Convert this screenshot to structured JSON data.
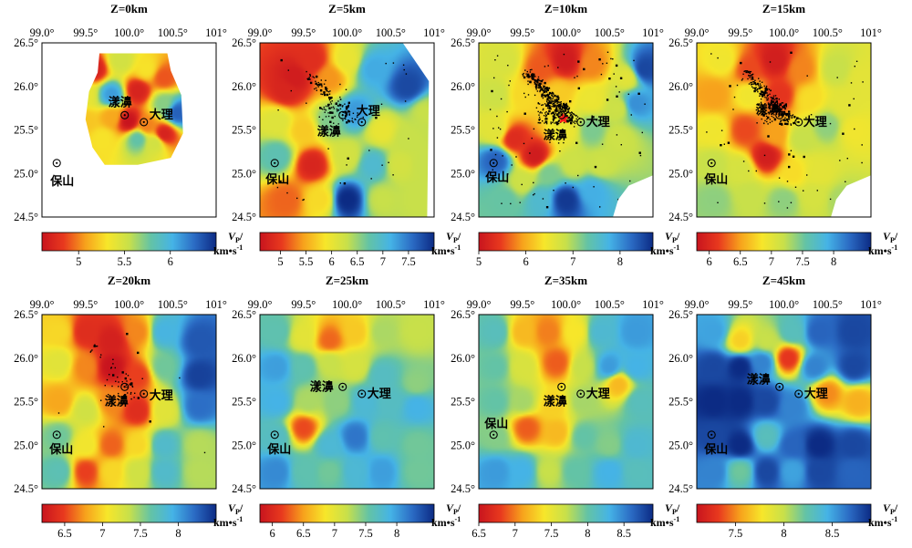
{
  "figure": {
    "x_ticks": [
      "99.0°",
      "99.5°",
      "100.0°",
      "100.5°",
      "101°"
    ],
    "y_ticks": [
      "26.5°",
      "26.0°",
      "25.5°",
      "25.0°",
      "24.5°"
    ],
    "unit_top": "V",
    "unit_sub": "P",
    "unit_slash": "/",
    "unit_bottom": "km•s",
    "unit_exp": "-1",
    "cities": {
      "baoshan": "保山",
      "yangbi": "漾濞",
      "dali": "大理"
    }
  },
  "colors": {
    "scale": [
      "#c8141e",
      "#e8391e",
      "#f7a21c",
      "#f7e62a",
      "#c8e04a",
      "#63c3a6",
      "#45b3e6",
      "#2b6bc4",
      "#0c2b84"
    ],
    "seismicity": "#000000",
    "epicenter": "#ff1a1a"
  },
  "chart_data": [
    {
      "type": "heatmap",
      "title": "Z=0km",
      "colorbar_ticks": [
        "5",
        "5.5",
        "6"
      ],
      "colorbar_range": [
        4.6,
        6.5
      ],
      "lon_range": [
        99.0,
        101.0
      ],
      "lat_range": [
        24.5,
        26.5
      ],
      "mask": "city-region",
      "seismicity": false,
      "nodes": [
        [
          99.6,
          26.2,
          4.7
        ],
        [
          99.9,
          26.3,
          5.5
        ],
        [
          100.2,
          26.2,
          5.3
        ],
        [
          100.4,
          26.1,
          4.9
        ],
        [
          99.5,
          25.9,
          5.4
        ],
        [
          99.8,
          25.9,
          6.1
        ],
        [
          100.1,
          25.95,
          4.7
        ],
        [
          100.4,
          25.8,
          5.7
        ],
        [
          100.55,
          25.7,
          6.3
        ],
        [
          99.5,
          25.6,
          5.2
        ],
        [
          99.8,
          25.65,
          5.1
        ],
        [
          100.0,
          25.6,
          4.6
        ],
        [
          100.2,
          25.55,
          5.0
        ],
        [
          100.4,
          25.45,
          4.7
        ],
        [
          99.7,
          25.4,
          5.3
        ],
        [
          100.1,
          25.4,
          5.8
        ],
        [
          100.3,
          25.35,
          5.5
        ]
      ]
    },
    {
      "type": "heatmap",
      "title": "Z=5km",
      "colorbar_ticks": [
        "5",
        "5.5",
        "6",
        "6.5",
        "7",
        "7.5"
      ],
      "colorbar_range": [
        4.6,
        8.0
      ],
      "lon_range": [
        99.0,
        101.0
      ],
      "lat_range": [
        24.5,
        26.5
      ],
      "mask": "corner-cut",
      "seismicity": true,
      "nodes": [
        [
          99.4,
          26.1,
          4.7
        ],
        [
          99.6,
          26.3,
          4.9
        ],
        [
          99.3,
          25.95,
          4.8
        ],
        [
          99.8,
          26.1,
          5.4
        ],
        [
          100.0,
          26.3,
          6.0
        ],
        [
          100.3,
          26.2,
          7.2
        ],
        [
          100.7,
          26.0,
          7.8
        ],
        [
          100.9,
          25.7,
          6.3
        ],
        [
          99.2,
          25.6,
          6.1
        ],
        [
          99.5,
          25.5,
          5.7
        ],
        [
          99.8,
          25.6,
          6.6
        ],
        [
          100.1,
          25.7,
          7.3
        ],
        [
          100.4,
          25.5,
          6.0
        ],
        [
          100.7,
          25.4,
          6.3
        ],
        [
          99.2,
          25.2,
          6.8
        ],
        [
          99.6,
          25.1,
          4.8
        ],
        [
          100.0,
          25.2,
          6.2
        ],
        [
          100.3,
          25.1,
          7.0
        ],
        [
          100.6,
          25.1,
          6.2
        ],
        [
          100.9,
          25.1,
          6.3
        ],
        [
          99.3,
          24.7,
          5.2
        ],
        [
          99.7,
          24.7,
          5.8
        ],
        [
          100.0,
          24.7,
          8.0
        ],
        [
          100.4,
          24.7,
          6.3
        ],
        [
          100.8,
          24.7,
          6.3
        ]
      ]
    },
    {
      "type": "heatmap",
      "title": "Z=10km",
      "colorbar_ticks": [
        "5",
        "6",
        "7",
        "8"
      ],
      "colorbar_range": [
        5.0,
        8.7
      ],
      "lon_range": [
        99.0,
        101.0
      ],
      "lat_range": [
        24.5,
        26.5
      ],
      "mask": "lower-right-cut",
      "seismicity": true,
      "epicenter": [
        99.97,
        25.63
      ],
      "nodes": [
        [
          99.3,
          26.3,
          6.7
        ],
        [
          99.7,
          26.2,
          5.6
        ],
        [
          100.0,
          26.3,
          5.1
        ],
        [
          100.3,
          26.25,
          5.8
        ],
        [
          100.7,
          26.1,
          6.6
        ],
        [
          100.9,
          26.2,
          8.5
        ],
        [
          99.2,
          25.9,
          6.8
        ],
        [
          99.5,
          25.9,
          6.3
        ],
        [
          99.9,
          25.9,
          6.2
        ],
        [
          100.3,
          25.85,
          6.5
        ],
        [
          100.6,
          25.75,
          6.8
        ],
        [
          100.8,
          25.8,
          8.0
        ],
        [
          99.2,
          25.5,
          6.6
        ],
        [
          99.4,
          25.4,
          5.3
        ],
        [
          99.65,
          25.2,
          5.1
        ],
        [
          100.0,
          25.5,
          6.5
        ],
        [
          100.3,
          25.5,
          7.2
        ],
        [
          100.6,
          25.4,
          6.8
        ],
        [
          99.2,
          25.15,
          8.3
        ],
        [
          99.5,
          24.9,
          6.8
        ],
        [
          99.8,
          25.0,
          7.2
        ],
        [
          100.1,
          25.1,
          6.8
        ],
        [
          100.4,
          25.1,
          6.8
        ],
        [
          99.3,
          24.7,
          7.3
        ],
        [
          99.7,
          24.7,
          7.6
        ],
        [
          100.0,
          24.7,
          8.6
        ],
        [
          100.3,
          24.8,
          7.8
        ]
      ]
    },
    {
      "type": "heatmap",
      "title": "Z=15km",
      "colorbar_ticks": [
        "6",
        "6.5",
        "7",
        "7.5",
        "8"
      ],
      "colorbar_range": [
        5.8,
        8.6
      ],
      "lon_range": [
        99.0,
        101.0
      ],
      "lat_range": [
        24.5,
        26.5
      ],
      "mask": "lower-right-cut",
      "seismicity": true,
      "nodes": [
        [
          99.3,
          26.3,
          6.9
        ],
        [
          99.6,
          26.2,
          6.2
        ],
        [
          99.9,
          26.3,
          5.9
        ],
        [
          100.2,
          26.2,
          6.4
        ],
        [
          100.6,
          26.2,
          7.2
        ],
        [
          100.9,
          26.1,
          7.0
        ],
        [
          99.2,
          25.9,
          6.5
        ],
        [
          99.6,
          25.9,
          6.9
        ],
        [
          99.95,
          25.9,
          6.1
        ],
        [
          100.3,
          25.85,
          6.8
        ],
        [
          100.7,
          25.8,
          7.0
        ],
        [
          99.2,
          25.5,
          6.9
        ],
        [
          99.55,
          25.5,
          6.2
        ],
        [
          99.9,
          25.45,
          6.5
        ],
        [
          100.2,
          25.4,
          7.2
        ],
        [
          100.5,
          25.55,
          7.4
        ],
        [
          100.8,
          25.5,
          6.9
        ],
        [
          99.2,
          25.1,
          7.2
        ],
        [
          99.5,
          25.05,
          7.1
        ],
        [
          99.8,
          25.2,
          5.9
        ],
        [
          100.1,
          25.0,
          6.8
        ],
        [
          100.4,
          25.0,
          7.0
        ],
        [
          99.2,
          24.7,
          7.4
        ],
        [
          99.6,
          24.75,
          7.2
        ],
        [
          100.0,
          24.7,
          7.4
        ],
        [
          100.35,
          24.75,
          7.1
        ],
        [
          100.65,
          24.7,
          7.3
        ]
      ]
    },
    {
      "type": "heatmap",
      "title": "Z=20km",
      "colorbar_ticks": [
        "6.5",
        "7",
        "7.5",
        "8"
      ],
      "colorbar_range": [
        6.2,
        8.5
      ],
      "lon_range": [
        99.0,
        101.0
      ],
      "lat_range": [
        24.5,
        26.5
      ],
      "mask": "full",
      "seismicity": true,
      "nodes": [
        [
          99.2,
          26.3,
          7.0
        ],
        [
          99.5,
          26.3,
          6.4
        ],
        [
          99.8,
          26.2,
          6.3
        ],
        [
          100.1,
          26.3,
          6.7
        ],
        [
          100.4,
          26.3,
          7.9
        ],
        [
          100.8,
          26.2,
          8.3
        ],
        [
          99.2,
          25.95,
          7.2
        ],
        [
          99.5,
          25.9,
          6.7
        ],
        [
          99.8,
          25.9,
          6.2
        ],
        [
          100.1,
          25.8,
          6.5
        ],
        [
          100.4,
          25.9,
          7.6
        ],
        [
          100.8,
          25.8,
          8.4
        ],
        [
          99.2,
          25.5,
          6.8
        ],
        [
          99.5,
          25.4,
          7.3
        ],
        [
          99.8,
          25.5,
          6.7
        ],
        [
          100.1,
          25.4,
          6.4
        ],
        [
          100.4,
          25.4,
          7.2
        ],
        [
          100.8,
          25.45,
          8.2
        ],
        [
          99.2,
          25.1,
          7.6
        ],
        [
          99.5,
          25.0,
          7.1
        ],
        [
          99.8,
          25.0,
          6.6
        ],
        [
          100.1,
          25.0,
          7.0
        ],
        [
          100.4,
          25.0,
          7.8
        ],
        [
          100.8,
          25.0,
          7.4
        ],
        [
          99.2,
          24.7,
          7.7
        ],
        [
          99.5,
          24.7,
          6.5
        ],
        [
          99.8,
          24.7,
          7.0
        ],
        [
          100.1,
          24.7,
          7.3
        ],
        [
          100.4,
          24.7,
          7.8
        ],
        [
          100.8,
          24.7,
          7.4
        ]
      ]
    },
    {
      "type": "heatmap",
      "title": "Z=25km",
      "colorbar_ticks": [
        "6",
        "6.5",
        "7",
        "7.5",
        "8"
      ],
      "colorbar_range": [
        5.8,
        8.6
      ],
      "lon_range": [
        99.0,
        101.0
      ],
      "lat_range": [
        24.5,
        26.5
      ],
      "mask": "full",
      "seismicity": false,
      "nodes": [
        [
          99.2,
          26.3,
          7.6
        ],
        [
          99.5,
          26.25,
          7.0
        ],
        [
          99.8,
          26.2,
          6.3
        ],
        [
          100.1,
          26.3,
          6.7
        ],
        [
          100.4,
          26.3,
          7.3
        ],
        [
          100.8,
          26.3,
          7.2
        ],
        [
          99.2,
          25.9,
          8.0
        ],
        [
          99.5,
          25.9,
          7.6
        ],
        [
          99.8,
          25.95,
          7.2
        ],
        [
          100.1,
          25.9,
          7.1
        ],
        [
          100.4,
          25.8,
          7.7
        ],
        [
          100.8,
          25.7,
          7.4
        ],
        [
          99.2,
          25.5,
          7.9
        ],
        [
          99.55,
          25.5,
          7.3
        ],
        [
          99.9,
          25.5,
          7.4
        ],
        [
          100.2,
          25.5,
          7.8
        ],
        [
          100.5,
          25.5,
          7.7
        ],
        [
          100.8,
          25.45,
          7.9
        ],
        [
          99.2,
          25.1,
          7.7
        ],
        [
          99.5,
          25.2,
          6.2
        ],
        [
          99.8,
          25.0,
          7.8
        ],
        [
          100.1,
          25.1,
          8.2
        ],
        [
          100.4,
          25.1,
          7.6
        ],
        [
          100.8,
          25.0,
          7.5
        ],
        [
          99.2,
          24.7,
          8.1
        ],
        [
          99.5,
          24.7,
          7.6
        ],
        [
          99.8,
          24.7,
          7.5
        ],
        [
          100.1,
          24.7,
          7.8
        ],
        [
          100.4,
          24.7,
          8.0
        ],
        [
          100.8,
          24.7,
          7.5
        ]
      ]
    },
    {
      "type": "heatmap",
      "title": "Z=35km",
      "colorbar_ticks": [
        "6.5",
        "7",
        "7.5",
        "8",
        "8.5"
      ],
      "colorbar_range": [
        6.5,
        8.9
      ],
      "lon_range": [
        99.0,
        101.0
      ],
      "lat_range": [
        24.5,
        26.5
      ],
      "mask": "full",
      "seismicity": false,
      "nodes": [
        [
          99.2,
          26.3,
          8.1
        ],
        [
          99.5,
          26.3,
          7.2
        ],
        [
          99.8,
          26.3,
          7.0
        ],
        [
          100.1,
          26.3,
          7.4
        ],
        [
          100.4,
          26.3,
          8.2
        ],
        [
          100.8,
          26.3,
          8.4
        ],
        [
          99.2,
          25.9,
          8.0
        ],
        [
          99.5,
          25.9,
          7.6
        ],
        [
          99.9,
          25.95,
          6.9
        ],
        [
          100.2,
          25.9,
          7.7
        ],
        [
          100.5,
          25.9,
          8.4
        ],
        [
          100.8,
          25.9,
          8.3
        ],
        [
          99.2,
          25.5,
          8.0
        ],
        [
          99.5,
          25.5,
          7.8
        ],
        [
          99.85,
          25.45,
          7.3
        ],
        [
          100.2,
          25.5,
          7.8
        ],
        [
          100.6,
          25.7,
          7.2
        ],
        [
          100.85,
          25.5,
          8.1
        ],
        [
          99.2,
          25.1,
          7.9
        ],
        [
          99.55,
          25.2,
          6.9
        ],
        [
          99.9,
          25.15,
          7.2
        ],
        [
          100.2,
          25.1,
          8.0
        ],
        [
          100.5,
          25.0,
          7.9
        ],
        [
          100.8,
          25.0,
          8.2
        ],
        [
          99.2,
          24.7,
          8.4
        ],
        [
          99.5,
          24.7,
          8.3
        ],
        [
          99.8,
          24.7,
          7.7
        ],
        [
          100.1,
          24.7,
          8.0
        ],
        [
          100.5,
          24.7,
          8.3
        ],
        [
          100.8,
          24.7,
          8.1
        ]
      ]
    },
    {
      "type": "heatmap",
      "title": "Z=45km",
      "colorbar_ticks": [
        "7.5",
        "8",
        "8.5"
      ],
      "colorbar_range": [
        7.1,
        8.9
      ],
      "lon_range": [
        99.0,
        101.0
      ],
      "lat_range": [
        24.5,
        26.5
      ],
      "mask": "full",
      "seismicity": false,
      "nodes": [
        [
          99.2,
          26.3,
          8.5
        ],
        [
          99.5,
          26.2,
          7.7
        ],
        [
          99.8,
          26.2,
          8.0
        ],
        [
          100.1,
          26.3,
          8.3
        ],
        [
          100.4,
          26.3,
          8.7
        ],
        [
          100.8,
          26.3,
          8.8
        ],
        [
          99.2,
          25.9,
          8.8
        ],
        [
          99.5,
          25.9,
          8.9
        ],
        [
          99.75,
          25.95,
          8.6
        ],
        [
          100.05,
          26.0,
          7.3
        ],
        [
          100.35,
          25.9,
          8.6
        ],
        [
          100.8,
          25.9,
          8.8
        ],
        [
          99.2,
          25.5,
          8.9
        ],
        [
          99.5,
          25.5,
          8.9
        ],
        [
          99.8,
          25.5,
          8.8
        ],
        [
          100.1,
          25.45,
          8.6
        ],
        [
          100.5,
          25.6,
          7.5
        ],
        [
          100.85,
          25.5,
          7.6
        ],
        [
          99.2,
          25.1,
          8.8
        ],
        [
          99.5,
          25.0,
          8.9
        ],
        [
          99.8,
          25.1,
          8.3
        ],
        [
          100.1,
          25.0,
          8.7
        ],
        [
          100.4,
          25.0,
          8.9
        ],
        [
          100.8,
          25.0,
          8.8
        ],
        [
          99.2,
          24.7,
          8.6
        ],
        [
          99.5,
          24.7,
          8.2
        ],
        [
          99.8,
          24.7,
          8.8
        ],
        [
          100.1,
          24.7,
          8.5
        ],
        [
          100.4,
          24.7,
          8.8
        ],
        [
          100.8,
          24.7,
          8.7
        ]
      ]
    }
  ]
}
